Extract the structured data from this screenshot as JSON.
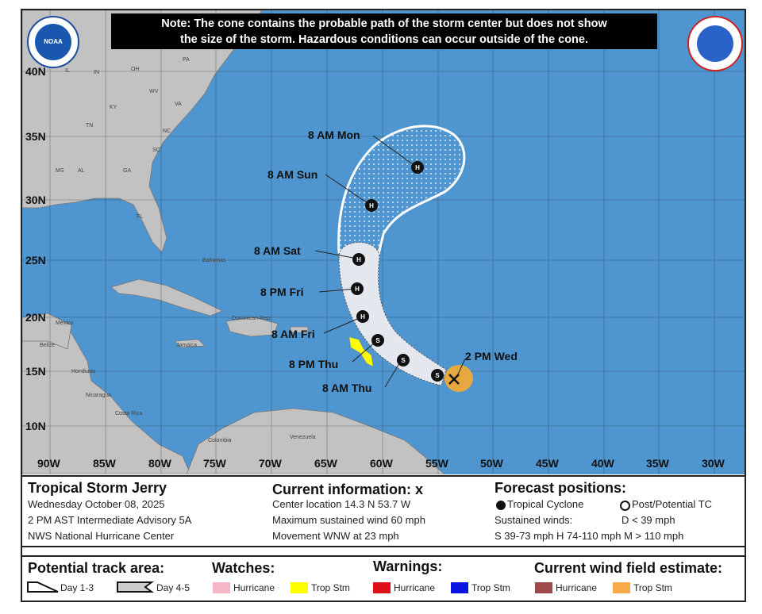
{
  "note": {
    "line1": "Note: The cone contains the probable path of the storm center but does not show",
    "line2": "the size of the storm. Hazardous conditions can occur outside of the cone."
  },
  "logos": {
    "noaa": "NOAA",
    "nws": "NATIONAL WEATHER SERVICE"
  },
  "latitudes": [
    "40N",
    "35N",
    "30N",
    "25N",
    "20N",
    "15N",
    "10N"
  ],
  "longitudes": [
    "90W",
    "85W",
    "80W",
    "75W",
    "70W",
    "65W",
    "60W",
    "55W",
    "50W",
    "45W",
    "40W",
    "35W",
    "30W"
  ],
  "geo_labels": {
    "pa": "PA",
    "oh": "OH",
    "in": "IN",
    "il": "IL",
    "wv": "WV",
    "va": "VA",
    "ky": "KY",
    "tn": "TN",
    "nc": "NC",
    "sc": "SC",
    "ms": "MS",
    "al": "AL",
    "ga": "GA",
    "fl": "FL",
    "bahamas": "Bahamas",
    "jamaica": "Jamaica",
    "mexico": "Mexico",
    "belize": "Belize",
    "honduras": "Honduras",
    "nicaragua": "Nicaragua",
    "costa_rica": "Costa Rica",
    "colombia": "Colombia",
    "venezuela": "Venezuela",
    "dom_rep": "Dominican Rep."
  },
  "forecast_points": [
    {
      "label": "2 PM Wed",
      "type": "X"
    },
    {
      "label": "",
      "type": "S"
    },
    {
      "label": "8 AM Thu",
      "type": "S"
    },
    {
      "label": "8 PM Thu",
      "type": "S"
    },
    {
      "label": "8 AM Fri",
      "type": "H"
    },
    {
      "label": "8 PM Fri",
      "type": "H"
    },
    {
      "label": "8 AM Sat",
      "type": "H"
    },
    {
      "label": "8 AM Sun",
      "type": "H"
    },
    {
      "label": "8 AM Mon",
      "type": "H"
    }
  ],
  "info": {
    "storm_name": "Tropical Storm Jerry",
    "date": "Wednesday October 08, 2025",
    "advisory": "2 PM AST Intermediate Advisory 5A",
    "center": "NWS National Hurricane Center",
    "current_title": "Current information: x",
    "location": "Center location 14.3 N 53.7 W",
    "wind": "Maximum sustained wind 60 mph",
    "movement": "Movement WNW at 23 mph",
    "forecast_title": "Forecast positions:",
    "tc": "Tropical Cyclone",
    "ptc": "Post/Potential TC",
    "sustained": "Sustained winds:",
    "d": "D < 39 mph",
    "shm": "S 39-73 mph  H 74-110 mph  M > 110 mph"
  },
  "legend": {
    "track_title": "Potential track area:",
    "day13": "Day 1-3",
    "day45": "Day 4-5",
    "watches_title": "Watches:",
    "warnings_title": "Warnings:",
    "wind_title": "Current wind field estimate:",
    "items": [
      {
        "label": "Hurricane",
        "color": "#f7b6c6"
      },
      {
        "label": "Trop Stm",
        "color": "#ffff00"
      },
      {
        "label": "Hurricane",
        "color": "#e0101a"
      },
      {
        "label": "Trop Stm",
        "color": "#0a14e0"
      },
      {
        "label": "Hurricane",
        "color": "#9c4a4a"
      },
      {
        "label": "Trop Stm",
        "color": "#f6aa4a"
      }
    ]
  },
  "colors": {
    "ocean": "#4f95cf",
    "land": "#c2c2c2",
    "cone_day13": "#e4e8ee",
    "wind_ts": "#e7a93f",
    "ts_watch": "#ffff00"
  }
}
